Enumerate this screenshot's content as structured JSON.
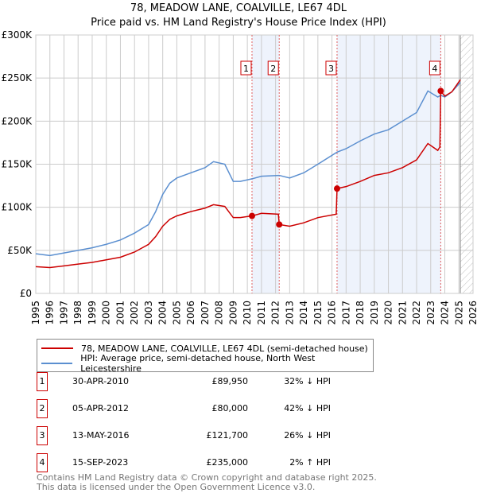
{
  "chart_data": {
    "type": "line",
    "title": "78, MEADOW LANE, COALVILLE, LE67 4DL",
    "subtitle": "Price paid vs. HM Land Registry's House Price Index (HPI)",
    "xlim": [
      1995,
      2026
    ],
    "ylim": [
      0,
      300000
    ],
    "y_ticks": [
      0,
      50000,
      100000,
      150000,
      200000,
      250000,
      300000
    ],
    "y_tick_labels": [
      "£0",
      "£50K",
      "£100K",
      "£150K",
      "£200K",
      "£250K",
      "£300K"
    ],
    "x_ticks": [
      1995,
      1996,
      1997,
      1998,
      1999,
      2000,
      2001,
      2002,
      2003,
      2004,
      2005,
      2006,
      2007,
      2008,
      2009,
      2010,
      2011,
      2012,
      2013,
      2014,
      2015,
      2016,
      2017,
      2018,
      2019,
      2020,
      2021,
      2022,
      2023,
      2024,
      2025,
      2026
    ],
    "grid": true,
    "shaded_ranges": [
      [
        2010.33,
        2012.26
      ],
      [
        2016.36,
        2023.71
      ]
    ],
    "future_hatch_from": 2025.1,
    "series": [
      {
        "name": "78, MEADOW LANE, COALVILLE, LE67 4DL (semi-detached house)",
        "color": "#cc0000",
        "x": [
          1995,
          1996,
          1997,
          1998,
          1999,
          2000,
          2001,
          2002,
          2003,
          2003.5,
          2004,
          2004.5,
          2005,
          2006,
          2007,
          2007.6,
          2008.4,
          2009,
          2009.5,
          2010.33,
          2011,
          2012.2,
          2012.26,
          2013,
          2014,
          2015,
          2016.3,
          2016.36,
          2017,
          2018,
          2019,
          2020,
          2021,
          2022,
          2022.8,
          2023.5,
          2023.65,
          2023.71,
          2024,
          2024.5,
          2025.1
        ],
        "y": [
          31000,
          30000,
          32000,
          34000,
          36000,
          39000,
          42000,
          48000,
          57000,
          66000,
          78000,
          86000,
          90000,
          95000,
          99000,
          103000,
          101000,
          88000,
          88000,
          89950,
          93000,
          92000,
          80000,
          78000,
          82000,
          88000,
          92000,
          121700,
          124000,
          130000,
          137000,
          140000,
          146000,
          155000,
          174000,
          166000,
          170000,
          235000,
          229000,
          234000,
          248000
        ]
      },
      {
        "name": "HPI: Average price, semi-detached house, North West Leicestershire",
        "color": "#5b8fd0",
        "x": [
          1995,
          1996,
          1997,
          1998,
          1999,
          2000,
          2001,
          2002,
          2003,
          2003.5,
          2004,
          2004.5,
          2005,
          2006,
          2007,
          2007.6,
          2008.4,
          2009,
          2009.5,
          2010.33,
          2011,
          2012.26,
          2013,
          2014,
          2015,
          2016.36,
          2017,
          2018,
          2019,
          2020,
          2021,
          2022,
          2022.8,
          2023.5,
          2023.71,
          2024,
          2024.5,
          2025.1
        ],
        "y": [
          46000,
          44000,
          47000,
          50000,
          53000,
          57000,
          62000,
          70000,
          80000,
          95000,
          115000,
          128000,
          134000,
          140000,
          146000,
          153000,
          150000,
          130000,
          130000,
          133000,
          136000,
          137000,
          134000,
          140000,
          150000,
          164000,
          168000,
          177000,
          185000,
          190000,
          200000,
          210000,
          235000,
          228000,
          230000,
          228000,
          234000,
          245000
        ]
      }
    ],
    "sales": [
      {
        "label": "1",
        "x": 2010.33,
        "price": 89950
      },
      {
        "label": "2",
        "x": 2012.26,
        "price": 80000
      },
      {
        "label": "3",
        "x": 2016.36,
        "price": 121700
      },
      {
        "label": "4",
        "x": 2023.71,
        "price": 235000
      }
    ]
  },
  "legend": {
    "property": "78, MEADOW LANE, COALVILLE, LE67 4DL (semi-detached house)",
    "hpi": "HPI: Average price, semi-detached house, North West Leicestershire"
  },
  "transactions": [
    {
      "num": "1",
      "date": "30-APR-2010",
      "price": "£89,950",
      "delta": "32% ↓ HPI"
    },
    {
      "num": "2",
      "date": "05-APR-2012",
      "price": "£80,000",
      "delta": "42% ↓ HPI"
    },
    {
      "num": "3",
      "date": "13-MAY-2016",
      "price": "£121,700",
      "delta": "26% ↓ HPI"
    },
    {
      "num": "4",
      "date": "15-SEP-2023",
      "price": "£235,000",
      "delta": "2% ↑ HPI"
    }
  ],
  "footer": {
    "line1": "Contains HM Land Registry data © Crown copyright and database right 2025.",
    "line2": "This data is licensed under the Open Government Licence v3.0."
  }
}
